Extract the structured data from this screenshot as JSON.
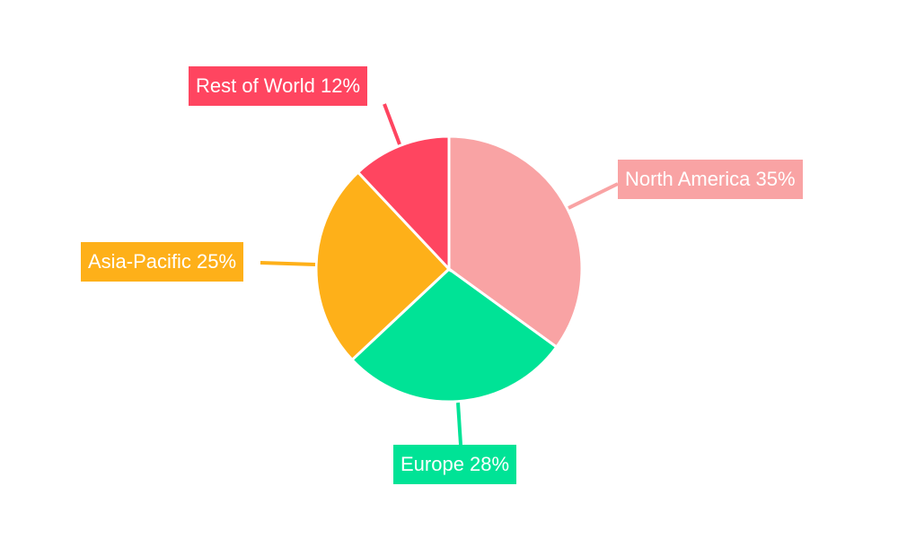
{
  "chart_data": {
    "type": "pie",
    "start_angle": "top, clockwise",
    "legend": "none",
    "slices": [
      {
        "label": "North America",
        "value": 35,
        "text": "North America 35%",
        "color": "#F9A3A4"
      },
      {
        "label": "Europe",
        "value": 28,
        "text": "Europe 28%",
        "color": "#00E396"
      },
      {
        "label": "Asia-Pacific",
        "value": 25,
        "text": "Asia-Pacific 25%",
        "color": "#FEB019"
      },
      {
        "label": "Rest of World",
        "value": 12,
        "text": "Rest of World 12%",
        "color": "#FF4560"
      }
    ]
  }
}
